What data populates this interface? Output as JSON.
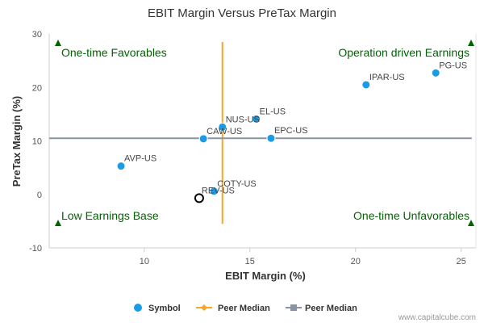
{
  "chart_data": {
    "type": "scatter",
    "title": "EBIT Margin Versus PreTax Margin",
    "xlabel": "EBIT Margin (%)",
    "ylabel": "PreTax Margin (%)",
    "xlim": [
      5.5,
      25.7
    ],
    "ylim": [
      -10,
      30
    ],
    "x_ticks": [
      10,
      15,
      20,
      25
    ],
    "y_ticks": [
      -10,
      0,
      10,
      20,
      30
    ],
    "grid": false,
    "series": [
      {
        "name": "Symbol",
        "color": "#1a9be6",
        "points": [
          {
            "label": "PG-US",
            "x": 23.8,
            "y": 22.7
          },
          {
            "label": "IPAR-US",
            "x": 20.5,
            "y": 20.5
          },
          {
            "label": "EL-US",
            "x": 15.3,
            "y": 14.1
          },
          {
            "label": "NUS-US",
            "x": 13.7,
            "y": 12.6
          },
          {
            "label": "EPC-US",
            "x": 16.0,
            "y": 10.5
          },
          {
            "label": "CAW-US",
            "x": 12.8,
            "y": 10.4
          },
          {
            "label": "AVP-US",
            "x": 8.9,
            "y": 5.3
          },
          {
            "label": "COTY-US",
            "x": 13.3,
            "y": 0.6
          }
        ]
      }
    ],
    "highlight_point": {
      "label": "REV-US",
      "x": 12.6,
      "y": -0.7
    },
    "peer_median_x": {
      "name": "Peer Median",
      "value": 13.7,
      "color": "#f5a623"
    },
    "peer_median_y": {
      "name": "Peer Median",
      "value": 10.5,
      "color": "#8a93a4"
    },
    "quadrants": {
      "top_left": "One-time Favorables",
      "top_right": "Operation driven Earnings",
      "bottom_left": "Low Earnings Base",
      "bottom_right": "One-time Unfavorables"
    },
    "legend": {
      "placement": "bottom",
      "items": [
        "Symbol",
        "Peer Median",
        "Peer Median"
      ]
    },
    "credit": "www.capitalcube.com",
    "colors": {
      "quadrant_text": "#006400",
      "marker": "#1a9be6"
    }
  }
}
